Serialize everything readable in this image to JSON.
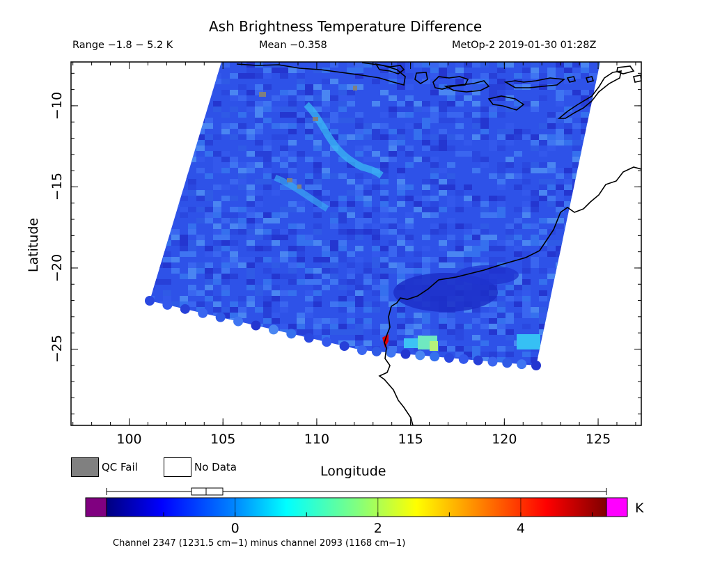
{
  "header": {
    "title": "Ash Brightness Temperature Difference",
    "range": "Range −1.8 − 5.2 K",
    "mean": "Mean −0.358",
    "satellite_time": "MetOp-2 2019-01-30 01:28Z"
  },
  "map": {
    "y_label": "Latitude",
    "x_label": "Longitude",
    "lon_ticks": [
      "100",
      "105",
      "110",
      "115",
      "120",
      "125"
    ],
    "lat_ticks": [
      "−10",
      "−15",
      "−20",
      "−25"
    ],
    "lon_range": [
      96.9,
      127.3
    ],
    "lat_range": [
      -29.7,
      -7.3
    ],
    "background_color": "#2e52e8",
    "coastline_color": "#000000"
  },
  "legend": {
    "qc_fail_label": "QC Fail",
    "qc_fail_color": "#808080",
    "no_data_label": "No Data",
    "no_data_color": "#ffffff"
  },
  "colorbar": {
    "unit": "K",
    "ticks": [
      "0",
      "2",
      "4"
    ],
    "min": -1.8,
    "max": 5.2,
    "under_color": "#800080",
    "over_color": "#ff00ff",
    "caption": "Channel 2347 (1231.5 cm−1) minus channel 2093 (1168 cm−1)"
  }
}
